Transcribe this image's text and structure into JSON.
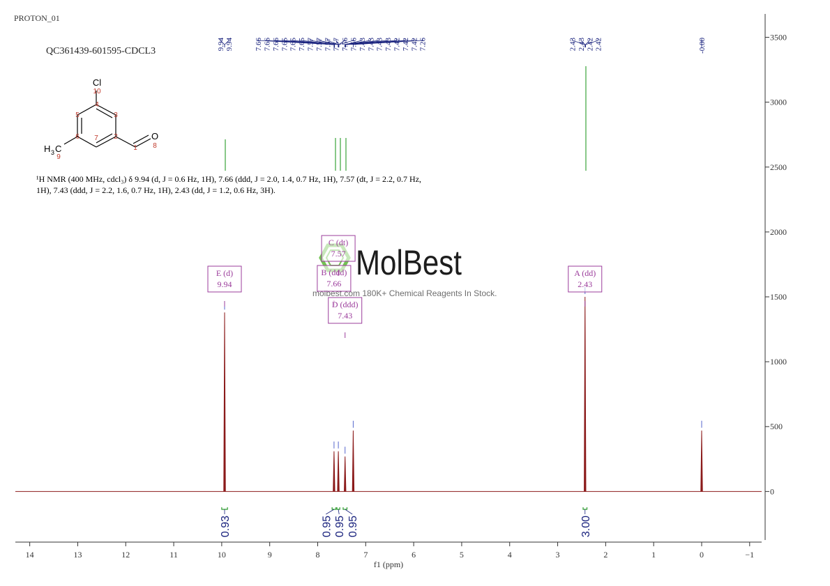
{
  "chart_data": {
    "type": "nmr",
    "run_name": "PROTON_01",
    "sample": "QC361439-601595-CDCL3",
    "description": "¹H NMR (400 MHz, cdcl₃) δ 9.94 (d, J = 0.6 Hz, 1H), 7.66 (ddd, J = 2.0, 1.4, 0.7 Hz, 1H), 7.57 (dt, J = 2.2, 0.7 Hz, 1H), 7.43 (ddd, J = 2.2, 1.6, 0.7 Hz, 1H), 2.43 (dd, J = 1.2, 0.6 Hz, 3H).",
    "structure_labels": [
      "Cl",
      "10",
      "4",
      "3",
      "5",
      "6",
      "2",
      "7",
      "1",
      "O",
      "8",
      "H",
      "3",
      "C",
      "9"
    ],
    "watermark": "MolBest",
    "watermark_note": "molbest.com 180K+ Chemical Reagents In Stock.",
    "xlabel": "f1 (ppm)",
    "xlim": [
      14.3,
      -1.25
    ],
    "xticks": [
      14,
      13,
      12,
      11,
      10,
      9,
      8,
      7,
      6,
      5,
      4,
      3,
      2,
      1,
      0,
      {
        "value": -1,
        "label": "−1"
      }
    ],
    "ylim": [
      -390,
      3680
    ],
    "yticks": [
      0,
      500,
      1000,
      1500,
      2000,
      2500,
      3000,
      3500
    ],
    "color": "#8b1a1a",
    "peaks": {
      "x": [
        9.94,
        7.66,
        7.57,
        7.43,
        7.26,
        2.43,
        0.0
      ],
      "values": [
        1380,
        310,
        310,
        270,
        470,
        1500,
        470
      ]
    },
    "peak_labels": [
      {
        "values": [
          9.94,
          9.94
        ],
        "labels": [
          "9.94",
          "9.94"
        ]
      },
      {
        "values": [
          7.66,
          7.66,
          7.66,
          7.65,
          7.65,
          7.65,
          7.57,
          7.57,
          7.57,
          7.57,
          7.56,
          7.56,
          7.43,
          7.43,
          7.43,
          7.43,
          7.42,
          7.42,
          7.42,
          7.26
        ],
        "labels": [
          "7.66",
          "7.66",
          "7.66",
          "7.65",
          "7.65",
          "7.65",
          "7.57",
          "7.57",
          "7.57",
          "7.57",
          "7.56",
          "7.56",
          "7.43",
          "7.43",
          "7.43",
          "7.43",
          "7.42",
          "7.42",
          "7.42",
          "7.26"
        ]
      },
      {
        "values": [
          2.43,
          2.43,
          2.42,
          2.42
        ],
        "labels": [
          "2.43",
          "2.43",
          "2.42",
          "2.42"
        ]
      },
      {
        "values": [
          0.0
        ],
        "labels": [
          "-0.00"
        ]
      }
    ],
    "multiplets": [
      {
        "name": "E (d)",
        "shift": 9.94
      },
      {
        "name": "B (ddd)",
        "shift": 7.66
      },
      {
        "name": "C (dt)",
        "shift": 7.57
      },
      {
        "name": "D (ddd)",
        "shift": 7.43
      },
      {
        "name": "A (dd)",
        "shift": 2.43
      }
    ],
    "integrals": [
      {
        "from": 10.0,
        "to": 9.88,
        "value": 0.93
      },
      {
        "from": 7.7,
        "to": 7.62,
        "value": 0.95
      },
      {
        "from": 7.6,
        "to": 7.54,
        "value": 0.95
      },
      {
        "from": 7.47,
        "to": 7.39,
        "value": 0.95
      },
      {
        "from": 2.47,
        "to": 2.39,
        "value": 3.0,
        "label": "3.00"
      }
    ]
  }
}
